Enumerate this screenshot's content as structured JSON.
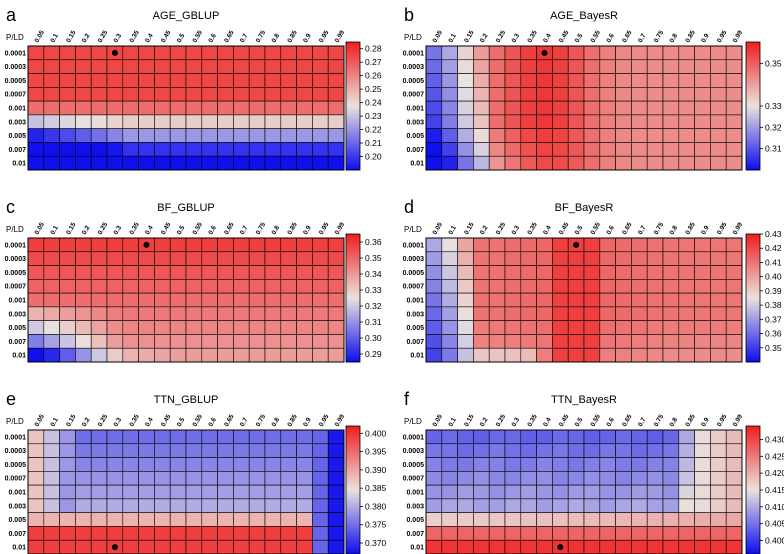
{
  "figure": {
    "row_label": "P/LD",
    "columns": [
      "0.05",
      "0.1",
      "0.15",
      "0.2",
      "0.25",
      "0.3",
      "0.35",
      "0.4",
      "0.45",
      "0.5",
      "0.55",
      "0.6",
      "0.65",
      "0.7",
      "0.75",
      "0.8",
      "0.85",
      "0.9",
      "0.95",
      "0.99"
    ],
    "rows": [
      "0.0001",
      "0.0003",
      "0.0005",
      "0.0007",
      "0.001",
      "0.003",
      "0.005",
      "0.007",
      "0.01"
    ],
    "colors": {
      "low": "#1010ee",
      "mid": "#e9e3df",
      "high": "#f02020",
      "grid": "#000000",
      "marker": "#000000"
    }
  },
  "chart_data": [
    {
      "type": "heatmap",
      "letter": "a",
      "title": "AGE_GBLUP",
      "vmin": 0.19,
      "vmax": 0.285,
      "colorbar_ticks": [
        "0.20",
        "0.21",
        "0.22",
        "0.23",
        "0.24",
        "0.25",
        "0.26",
        "0.27",
        "0.28"
      ],
      "pattern": "a",
      "marker": {
        "row": "0.0001",
        "column": "0.3"
      }
    },
    {
      "type": "heatmap",
      "letter": "b",
      "title": "AGE_BayesR",
      "vmin": 0.3,
      "vmax": 0.36,
      "colorbar_ticks": [
        "0.31",
        "0.32",
        "0.33",
        "0.35"
      ],
      "pattern": "b",
      "marker": {
        "row": "0.0001",
        "column": "0.4"
      }
    },
    {
      "type": "heatmap",
      "letter": "c",
      "title": "BF_GBLUP",
      "vmin": 0.285,
      "vmax": 0.365,
      "colorbar_ticks": [
        "0.29",
        "0.30",
        "0.31",
        "0.32",
        "0.33",
        "0.34",
        "0.35",
        "0.36"
      ],
      "pattern": "c",
      "marker": {
        "row": "0.0001",
        "column": "0.4"
      }
    },
    {
      "type": "heatmap",
      "letter": "d",
      "title": "BF_BayesR",
      "vmin": 0.34,
      "vmax": 0.43,
      "colorbar_ticks": [
        "0.35",
        "0.36",
        "0.37",
        "0.38",
        "0.39",
        "0.40",
        "0.41",
        "0.42",
        "0.43"
      ],
      "pattern": "d",
      "marker": {
        "row": "0.0001",
        "column": "0.5"
      }
    },
    {
      "type": "heatmap",
      "letter": "e",
      "title": "TTN_GBLUP",
      "vmin": 0.367,
      "vmax": 0.402,
      "colorbar_ticks": [
        "0.370",
        "0.375",
        "0.380",
        "0.385",
        "0.390",
        "0.395",
        "0.400"
      ],
      "pattern": "e",
      "marker": {
        "row": "0.01",
        "column": "0.3"
      }
    },
    {
      "type": "heatmap",
      "letter": "f",
      "title": "TTN_BayesR",
      "vmin": 0.396,
      "vmax": 0.434,
      "colorbar_ticks": [
        "0.400",
        "0.405",
        "0.410",
        "0.415",
        "0.420",
        "0.425",
        "0.430"
      ],
      "pattern": "f",
      "marker": {
        "row": "0.01",
        "column": "0.45"
      }
    }
  ]
}
